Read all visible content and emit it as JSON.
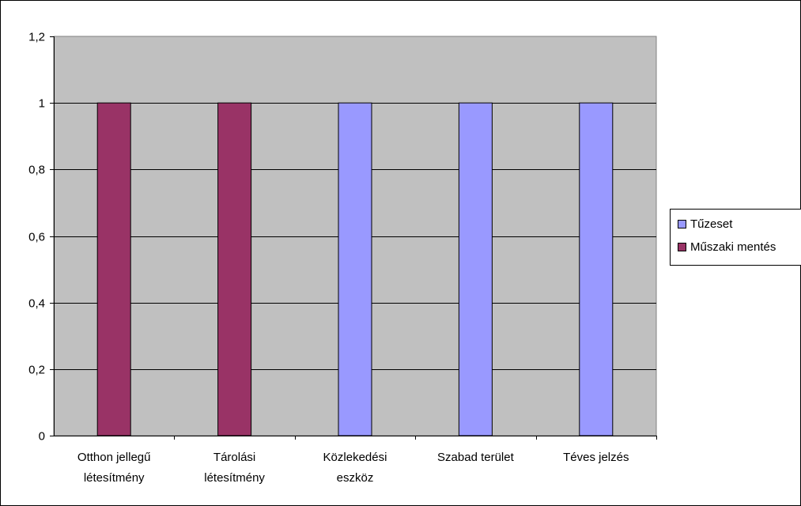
{
  "chart_data": {
    "type": "bar",
    "categories": [
      [
        "Otthon jellegű",
        "létesítmény"
      ],
      [
        "Tárolási",
        "létesítmény"
      ],
      [
        "Közlekedési",
        "eszköz"
      ],
      [
        "Szabad terület"
      ],
      [
        "Téves jelzés"
      ]
    ],
    "series": [
      {
        "name": "Tűzeset",
        "color": "#9999ff",
        "values": [
          0,
          0,
          1,
          1,
          1
        ]
      },
      {
        "name": "Műszaki mentés",
        "color": "#993366",
        "values": [
          1,
          1,
          0,
          0,
          0
        ]
      }
    ],
    "yticks": [
      "0",
      "0,2",
      "0,4",
      "0,6",
      "0,8",
      "1",
      "1,2"
    ],
    "ylim": [
      0,
      1.2
    ],
    "plot_background": "#c0c0c0",
    "grid": true,
    "legend_position": "right"
  }
}
